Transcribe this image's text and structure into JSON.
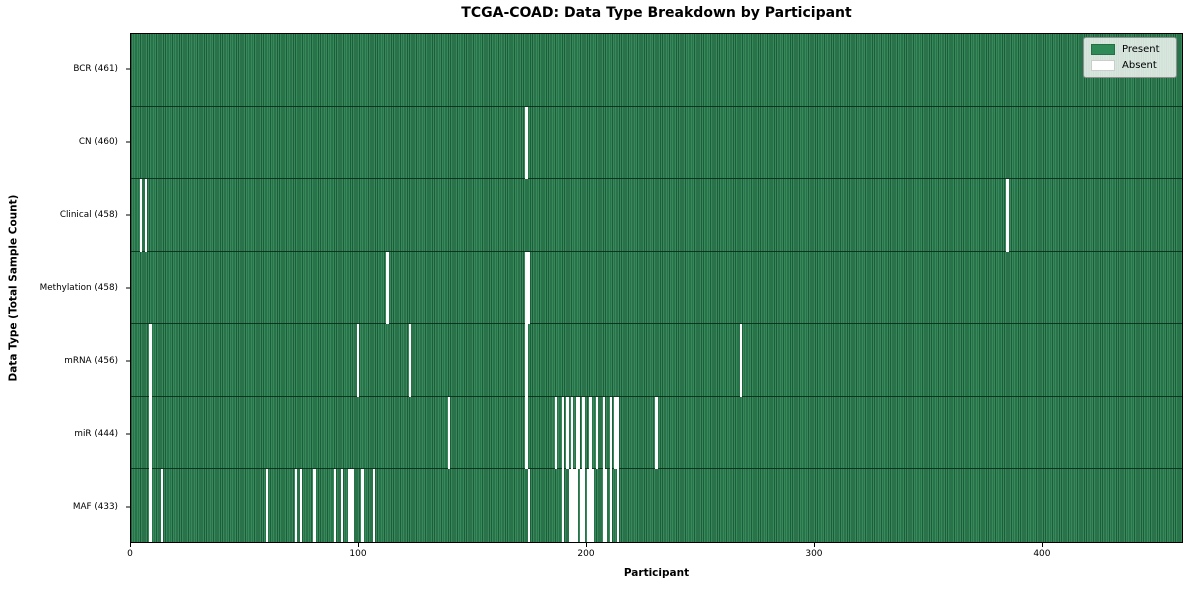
{
  "figure": {
    "title": "TCGA-COAD: Data Type Breakdown by Participant",
    "xlabel": "Participant",
    "ylabel": "Data Type (Total Sample Count)"
  },
  "legend": {
    "items": [
      {
        "label": "Present",
        "color": "#2E8B57"
      },
      {
        "label": "Absent",
        "color": "#FFFFFF"
      }
    ]
  },
  "colors": {
    "present_fill": "#35895A",
    "present_edge": "#1F5C39",
    "absent": "#FFFFFF",
    "row_separator": "rgba(8,38,22,0.8)",
    "axis": "#000000"
  },
  "chart_data": {
    "type": "heatmap",
    "title": "TCGA-COAD: Data Type Breakdown by Participant",
    "xlabel": "Participant",
    "ylabel": "Data Type (Total Sample Count)",
    "xlim": [
      0,
      461
    ],
    "x_ticks": [
      0,
      100,
      200,
      300,
      400
    ],
    "total_participants": 461,
    "grid": false,
    "legend_position": "upper right",
    "cell_values": {
      "present": 1,
      "absent": 0
    },
    "rows": [
      {
        "data_type": "BCR",
        "label": "BCR (461)",
        "present_count": 461,
        "absent_participants": []
      },
      {
        "data_type": "CN",
        "label": "CN (460)",
        "present_count": 460,
        "absent_participants": [
          173
        ]
      },
      {
        "data_type": "Clinical",
        "label": "Clinical (458)",
        "present_count": 458,
        "absent_participants": [
          4,
          6,
          384
        ]
      },
      {
        "data_type": "Methylation",
        "label": "Methylation (458)",
        "present_count": 458,
        "absent_participants": [
          112,
          173,
          174
        ]
      },
      {
        "data_type": "mRNA",
        "label": "mRNA (456)",
        "present_count": 456,
        "absent_participants": [
          8,
          99,
          122,
          173,
          267
        ]
      },
      {
        "data_type": "miR",
        "label": "miR (444)",
        "present_count": 444,
        "absent_participants": [
          8,
          139,
          173,
          186,
          189,
          191,
          193,
          195,
          196,
          198,
          201,
          204,
          207,
          210,
          212,
          213,
          230
        ]
      },
      {
        "data_type": "MAF",
        "label": "MAF (433)",
        "present_count": 433,
        "absent_participants": [
          8,
          13,
          59,
          72,
          74,
          80,
          89,
          92,
          95,
          96,
          97,
          101,
          106,
          174,
          189,
          192,
          193,
          194,
          195,
          197,
          198,
          200,
          201,
          202,
          207,
          208,
          210,
          213
        ]
      }
    ]
  }
}
